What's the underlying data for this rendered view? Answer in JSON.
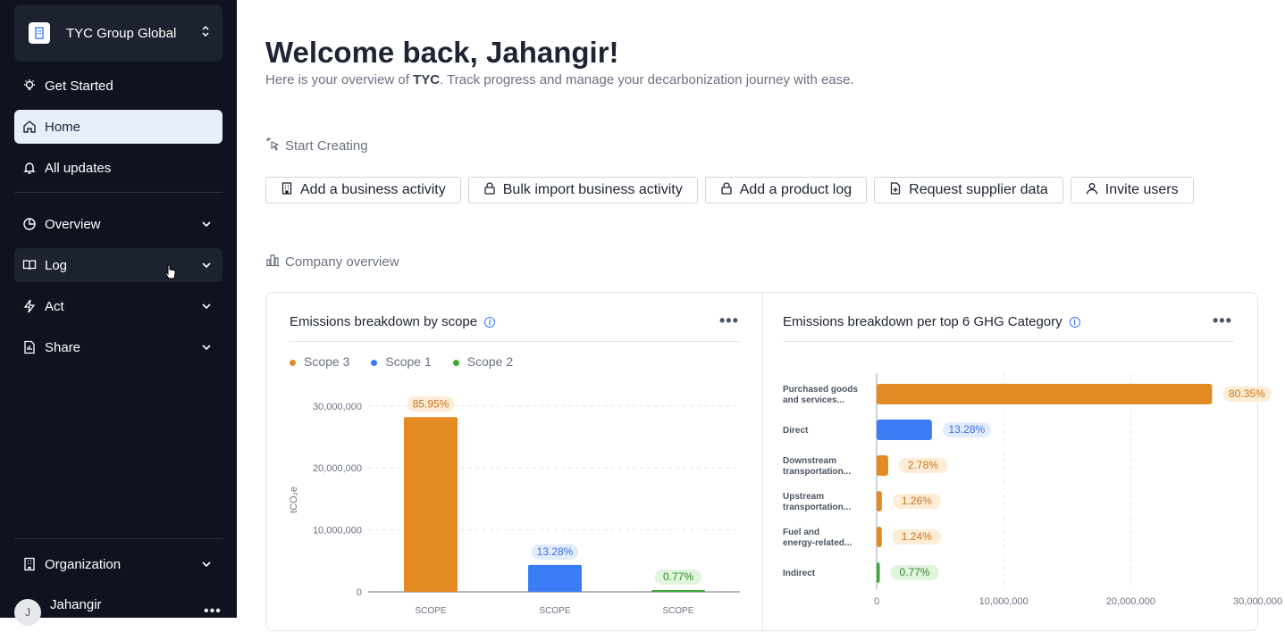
{
  "sidebar": {
    "org_name": "TYC Group Global",
    "items": [
      {
        "label": "Get Started",
        "icon": "lightbulb-icon"
      },
      {
        "label": "Home",
        "icon": "home-icon",
        "active": true
      },
      {
        "label": "All updates",
        "icon": "bell-icon"
      },
      {
        "label": "Overview",
        "icon": "pie-chart-icon"
      },
      {
        "label": "Log",
        "icon": "book-icon"
      },
      {
        "label": "Act",
        "icon": "bolt-icon"
      },
      {
        "label": "Share",
        "icon": "share-file-icon"
      }
    ],
    "organization": "Organization",
    "user": {
      "initial": "J",
      "name": "Jahangir",
      "menu": "•••"
    }
  },
  "main": {
    "welcome": "Welcome back, Jahangir!",
    "subtitle_pre": "Here is your overview of ",
    "subtitle_company": "TYC",
    "subtitle_post": ". Track progress and manage your decarbonization journey with ease.",
    "start_creating": "Start Creating",
    "actions": [
      {
        "label": "Add a business activity",
        "icon": "building-icon"
      },
      {
        "label": "Bulk import business activity",
        "icon": "lock-icon"
      },
      {
        "label": "Add a product log",
        "icon": "lock-icon"
      },
      {
        "label": "Request supplier data",
        "icon": "file-plus-icon"
      },
      {
        "label": "Invite users",
        "icon": "user-icon"
      }
    ],
    "company_overview": "Company overview"
  },
  "colors": {
    "scope3": "#e38a22",
    "scope1": "#3b7bf6",
    "scope2": "#3fa836"
  },
  "chart_data": [
    {
      "type": "bar",
      "title": "Emissions breakdown by scope",
      "ylabel": "tCO₂e",
      "ylim": [
        0,
        33000000
      ],
      "yticks": [
        "30,000,000",
        "20,000,000",
        "10,000,000",
        "0"
      ],
      "ytick_values": [
        30000000,
        20000000,
        10000000,
        0
      ],
      "legend": [
        "Scope 3",
        "Scope 1",
        "Scope 2"
      ],
      "categories": [
        "SCOPE",
        "SCOPE",
        "SCOPE"
      ],
      "values": [
        28200000,
        4350000,
        250000
      ],
      "labels": [
        "85.95%",
        "13.28%",
        "0.77%"
      ]
    },
    {
      "type": "bar",
      "orientation": "horizontal",
      "title": "Emissions breakdown per top 6 GHG Category",
      "xlim": [
        0,
        32000000
      ],
      "xticks": [
        "0",
        "10,000,000",
        "20,000,000",
        "30,000,000"
      ],
      "xtick_values": [
        0,
        10000000,
        20000000,
        30000000
      ],
      "categories": [
        [
          "Purchased goods",
          "and services..."
        ],
        [
          "Direct"
        ],
        [
          "Downstream",
          "transportation..."
        ],
        [
          "Upstream",
          "transportation..."
        ],
        [
          "Fuel and",
          "energy-related..."
        ],
        [
          "Indirect"
        ]
      ],
      "values": [
        26400000,
        4350000,
        910000,
        413000,
        406000,
        250000
      ],
      "labels": [
        "80.35%",
        "13.28%",
        "2.78%",
        "1.26%",
        "1.24%",
        "0.77%"
      ]
    }
  ]
}
